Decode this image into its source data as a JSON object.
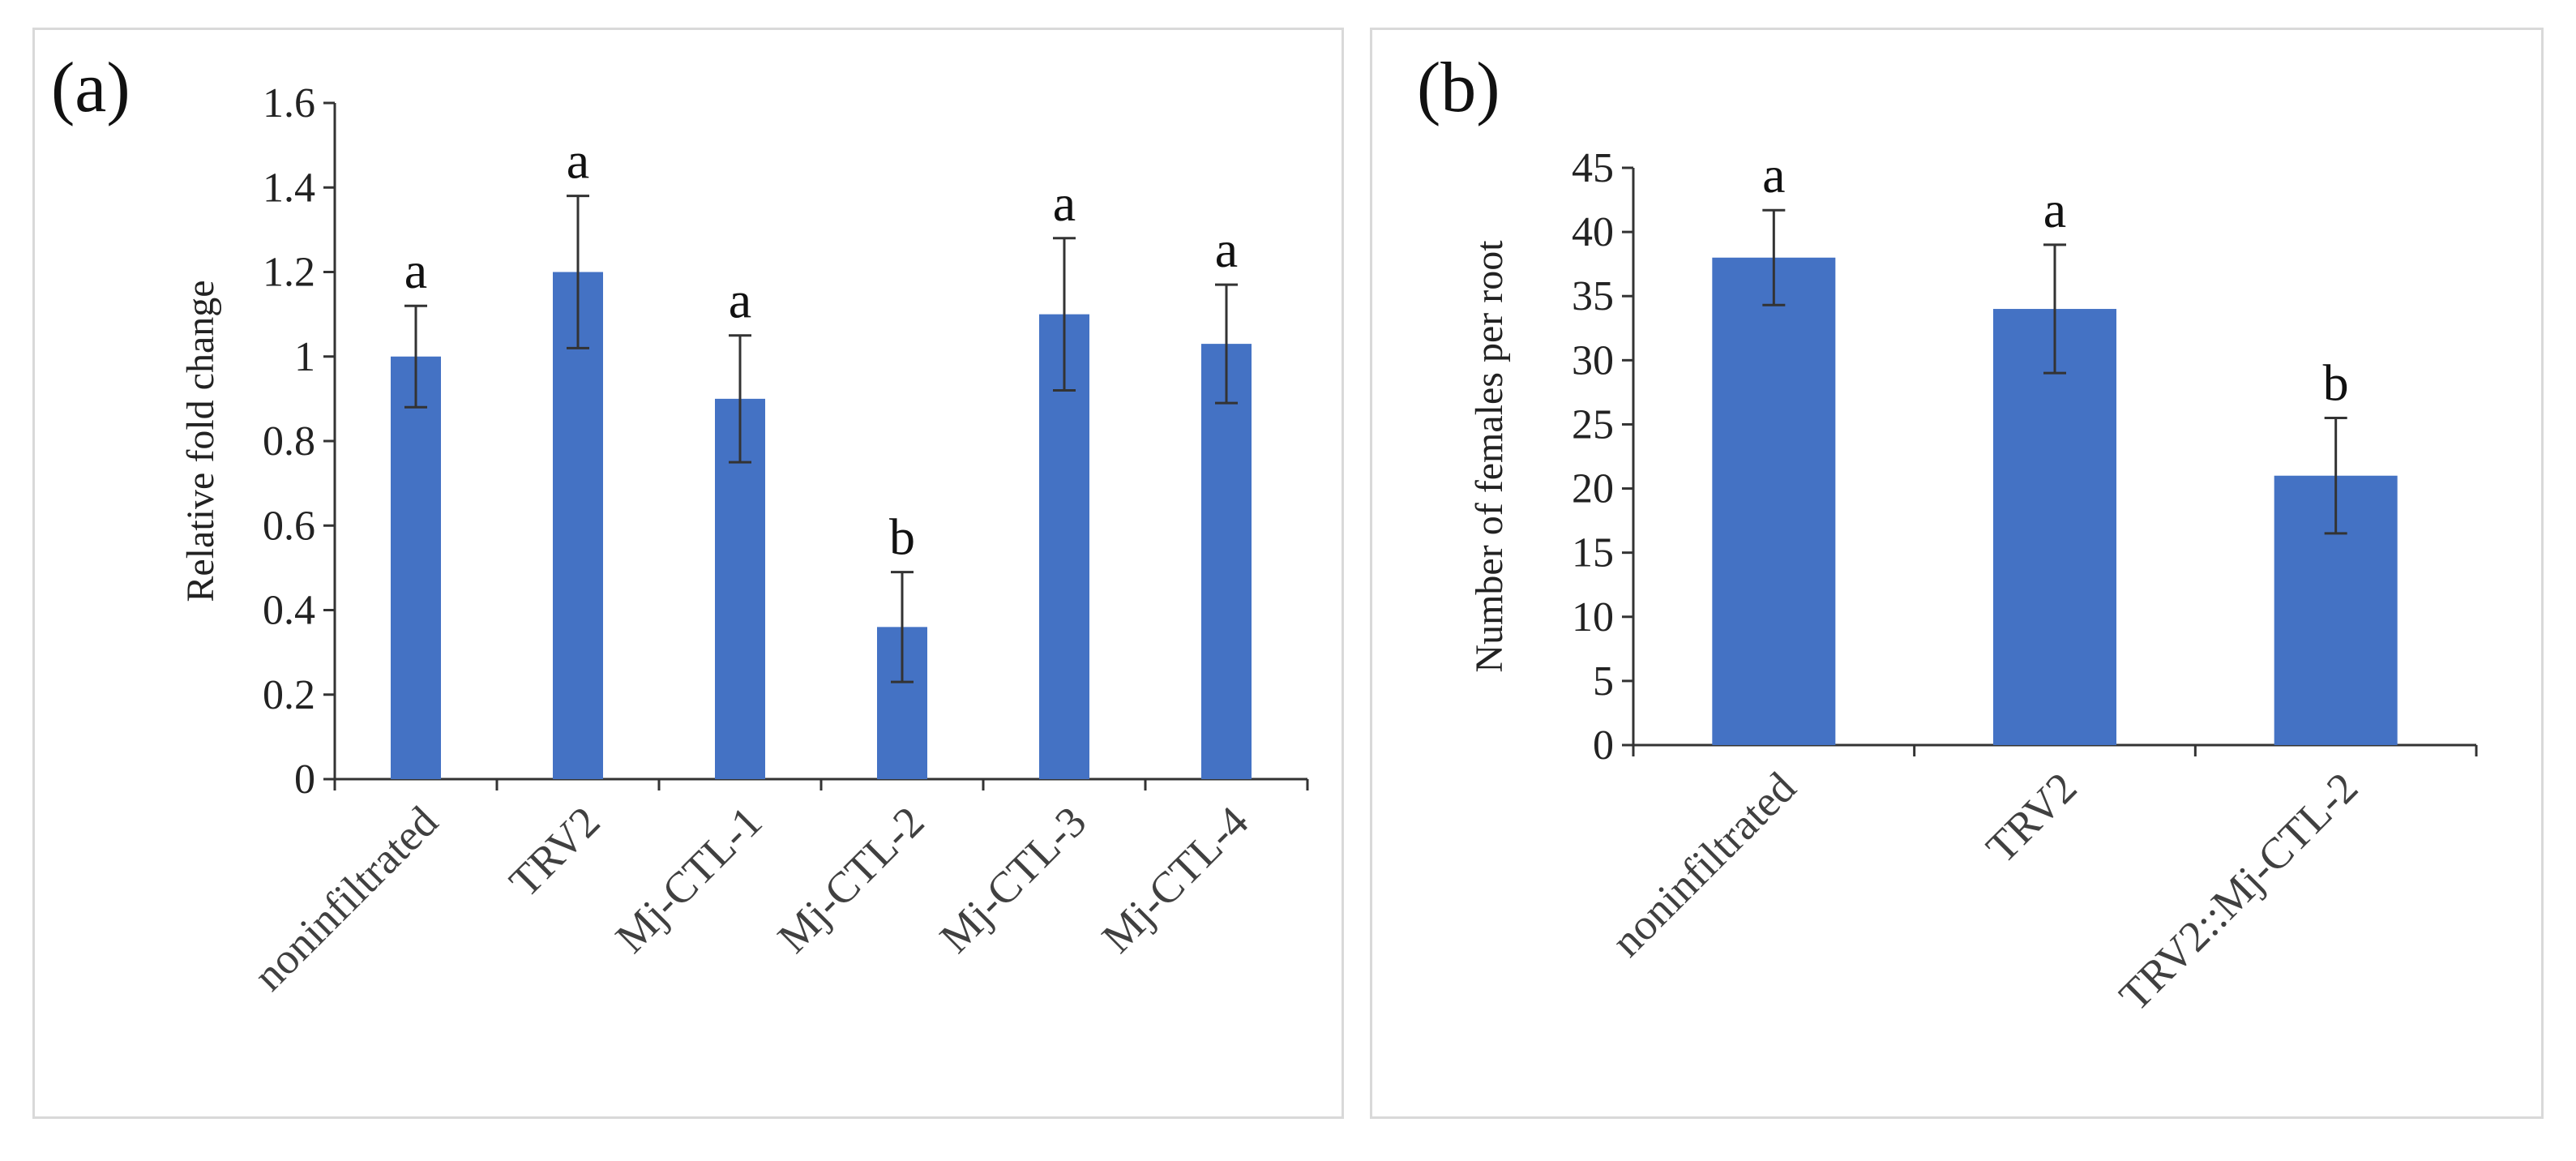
{
  "colors": {
    "bar": "#4472C4",
    "axis": "#333333",
    "error_bar": "#333333",
    "border": "#d9d9d9"
  },
  "chart_data": [
    {
      "type": "bar",
      "panel_label": "(a)",
      "title": "",
      "xlabel": "",
      "ylabel": "Relative fold change",
      "ylim": [
        0,
        1.6
      ],
      "yticks": [
        0,
        0.2,
        0.4,
        0.6,
        0.8,
        1,
        1.2,
        1.4,
        1.6
      ],
      "ytick_labels": [
        "0",
        "0.2",
        "0.4",
        "0.6",
        "0.8",
        "1",
        "1.2",
        "1.4",
        "1.6"
      ],
      "categories": [
        "noninfiltrated",
        "TRV2",
        "Mj-CTL-1",
        "Mj-CTL-2",
        "Mj-CTL-3",
        "Mj-CTL-4"
      ],
      "values": [
        1.0,
        1.2,
        0.9,
        0.36,
        1.1,
        1.03
      ],
      "errors": [
        0.12,
        0.18,
        0.15,
        0.13,
        0.18,
        0.14
      ],
      "significance": [
        "a",
        "a",
        "a",
        "b",
        "a",
        "a"
      ]
    },
    {
      "type": "bar",
      "panel_label": "(b)",
      "title": "",
      "xlabel": "",
      "ylabel": "Number of females per root",
      "ylim": [
        0,
        45
      ],
      "yticks": [
        0,
        5,
        10,
        15,
        20,
        25,
        30,
        35,
        40,
        45
      ],
      "ytick_labels": [
        "0",
        "5",
        "10",
        "15",
        "20",
        "25",
        "30",
        "35",
        "40",
        "45"
      ],
      "categories": [
        "noninfiltrated",
        "TRV2",
        "TRV2::Mj-CTL-2"
      ],
      "values": [
        38,
        34,
        21
      ],
      "errors": [
        3.7,
        5.0,
        4.5
      ],
      "significance": [
        "a",
        "a",
        "b"
      ]
    }
  ]
}
